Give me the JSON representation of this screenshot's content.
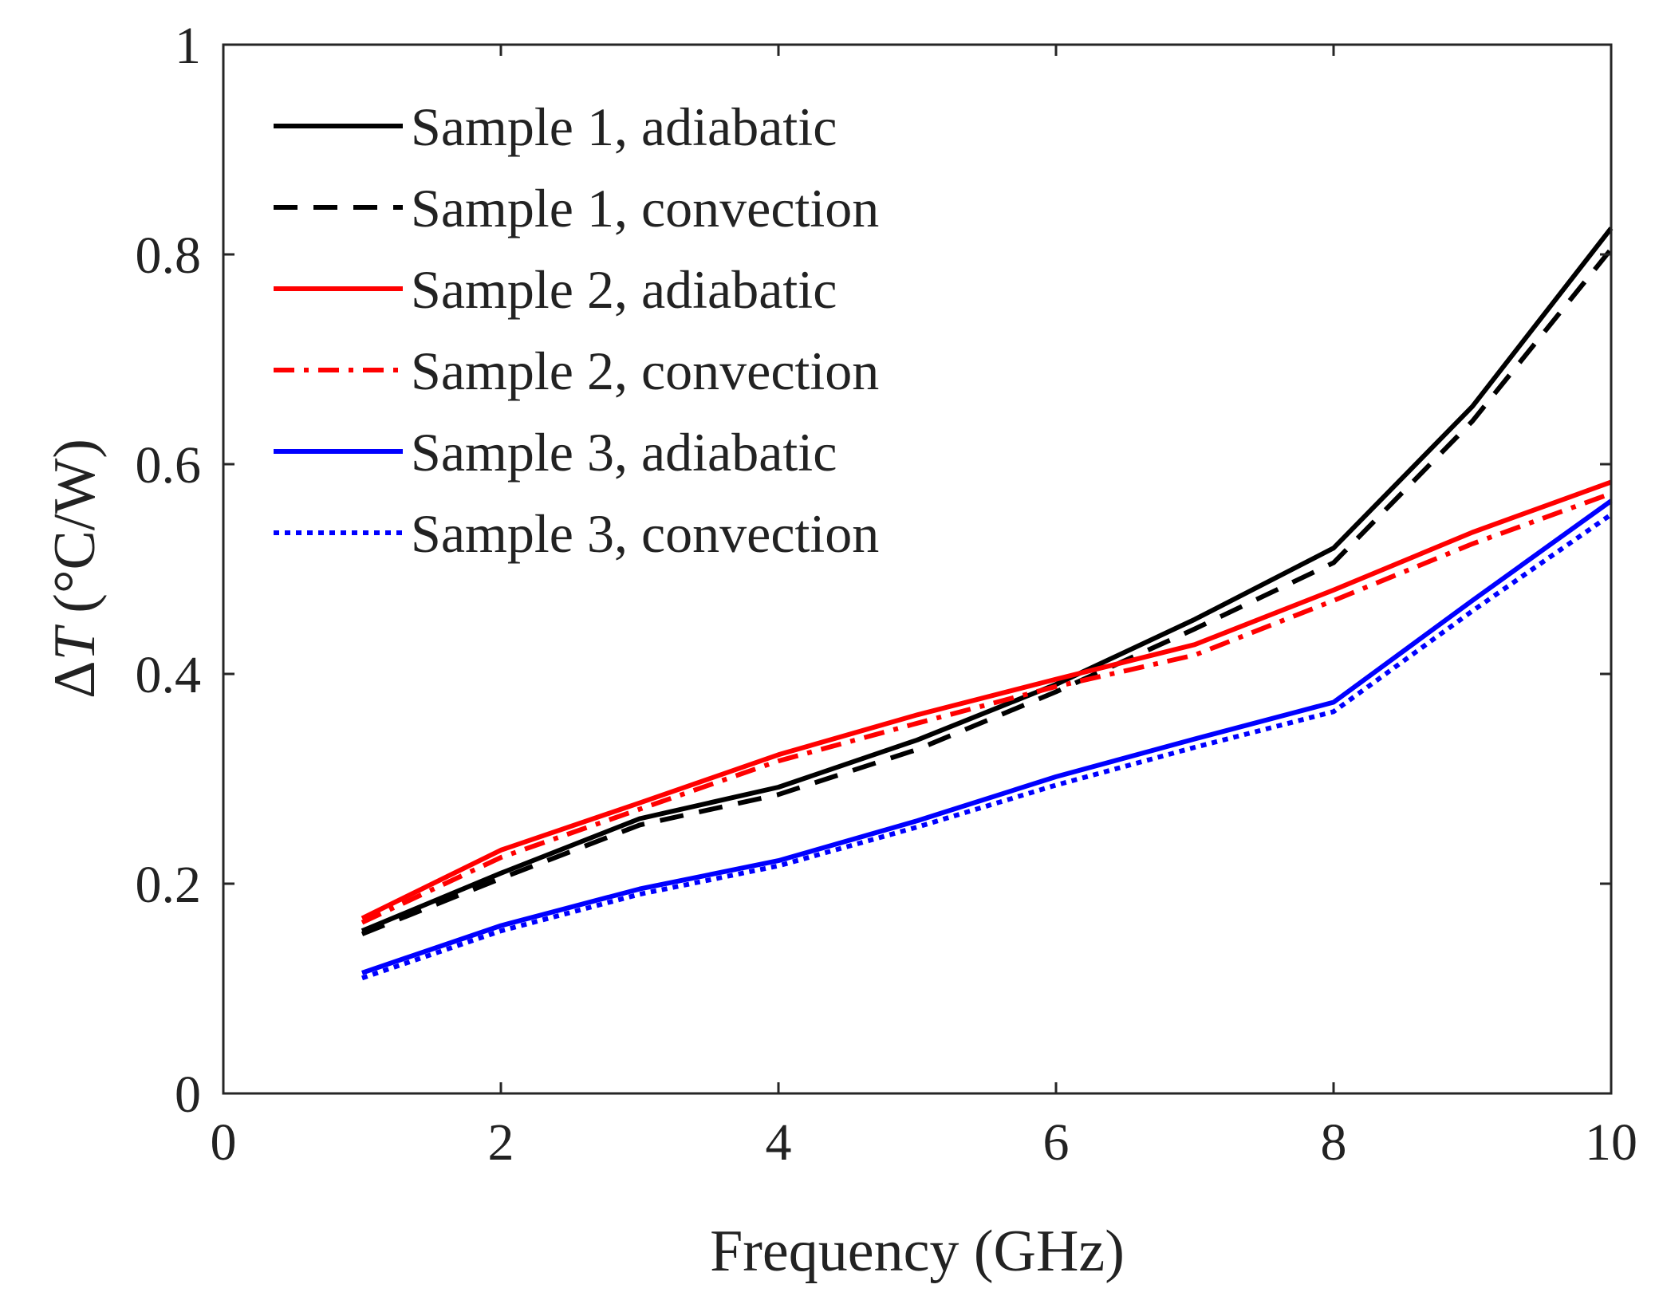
{
  "chart_data": {
    "type": "line",
    "xlabel": "Frequency (GHz)",
    "ylabel": {
      "prefix": "Δ",
      "italic": "T",
      "suffix": " (°C/W)"
    },
    "xlim": [
      0,
      10
    ],
    "ylim": [
      0,
      1
    ],
    "xticks": [
      "0",
      "2",
      "4",
      "6",
      "8",
      "10"
    ],
    "yticks": [
      "0",
      "0.2",
      "0.4",
      "0.6",
      "0.8",
      "1"
    ],
    "legend_position": "top-left",
    "grid": false,
    "x": [
      1,
      2,
      3,
      4,
      5,
      6,
      7,
      8,
      9,
      10
    ],
    "series": [
      {
        "name": "Sample 1, adiabatic",
        "color": "#000000",
        "dash": "solid",
        "values": [
          0.155,
          0.21,
          0.262,
          0.292,
          0.337,
          0.39,
          0.452,
          0.52,
          0.655,
          0.825
        ]
      },
      {
        "name": "Sample 1, convection",
        "color": "#000000",
        "dash": "dashed",
        "values": [
          0.152,
          0.205,
          0.256,
          0.285,
          0.328,
          0.383,
          0.443,
          0.506,
          0.641,
          0.805
        ]
      },
      {
        "name": "Sample 2, adiabatic",
        "color": "#ff0000",
        "dash": "solid",
        "values": [
          0.167,
          0.232,
          0.277,
          0.323,
          0.361,
          0.395,
          0.428,
          0.48,
          0.535,
          0.583
        ]
      },
      {
        "name": "Sample 2, convection",
        "color": "#ff0000",
        "dash": "dashdot",
        "values": [
          0.163,
          0.225,
          0.271,
          0.317,
          0.353,
          0.388,
          0.418,
          0.47,
          0.524,
          0.572
        ]
      },
      {
        "name": "Sample 3, adiabatic",
        "color": "#0000ff",
        "dash": "solid",
        "values": [
          0.115,
          0.16,
          0.195,
          0.222,
          0.26,
          0.302,
          0.338,
          0.373,
          0.47,
          0.565
        ]
      },
      {
        "name": "Sample 3, convection",
        "color": "#0000ff",
        "dash": "dotted",
        "values": [
          0.11,
          0.155,
          0.19,
          0.217,
          0.254,
          0.294,
          0.33,
          0.364,
          0.46,
          0.552
        ]
      }
    ]
  }
}
